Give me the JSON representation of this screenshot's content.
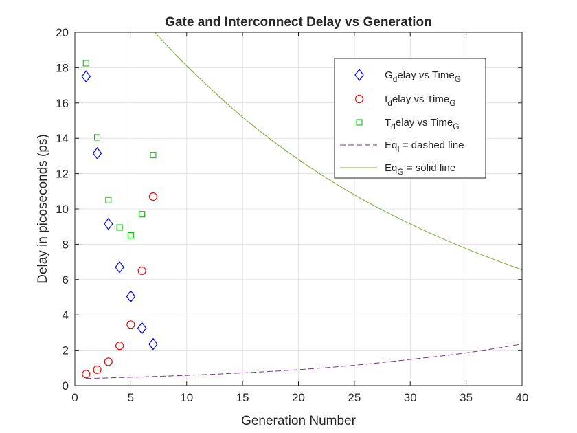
{
  "chart_data": {
    "type": "scatter",
    "title": "Gate and Interconnect Delay vs Generation",
    "xlabel": "Generation Number",
    "ylabel": "Delay in picoseconds (ps)",
    "xlim": [
      0,
      40
    ],
    "ylim": [
      0,
      20
    ],
    "xticks": [
      "0",
      "5",
      "10",
      "15",
      "20",
      "25",
      "30",
      "35",
      "40"
    ],
    "yticks": [
      "0",
      "2",
      "4",
      "6",
      "8",
      "10",
      "12",
      "14",
      "16",
      "18",
      "20"
    ],
    "grid": true,
    "legend_position": "top-right",
    "series": [
      {
        "name": "G_delay vs Time_G",
        "marker": "diamond",
        "color": "#0000ff",
        "x": [
          1,
          2,
          3,
          4,
          5,
          6,
          7
        ],
        "y": [
          17.5,
          13.15,
          9.15,
          6.7,
          5.05,
          3.25,
          2.35
        ]
      },
      {
        "name": "I_delay vs Time_G",
        "marker": "circle",
        "color": "#ff0000",
        "x": [
          1,
          2,
          3,
          4,
          5,
          6,
          7
        ],
        "y": [
          0.65,
          0.9,
          1.35,
          2.25,
          3.45,
          6.5,
          10.7
        ]
      },
      {
        "name": "T_delay vs Time_G",
        "marker": "square",
        "color": "#00cc00",
        "x": [
          1,
          2,
          3,
          4,
          5,
          6,
          7
        ],
        "y": [
          18.25,
          14.05,
          10.5,
          8.95,
          8.5,
          9.7,
          13.05
        ]
      },
      {
        "name": "Eq_I = dashed line",
        "marker": "none",
        "line": "dashed",
        "color": "#7e2f8e",
        "x": [
          1,
          5,
          10,
          15,
          20,
          25,
          30,
          35,
          40
        ],
        "y": [
          0.4,
          0.47,
          0.58,
          0.72,
          0.9,
          1.15,
          1.48,
          1.85,
          2.35
        ]
      },
      {
        "name": "Eq_G = solid line",
        "marker": "none",
        "line": "solid",
        "color": "#77ac30",
        "x": [
          7,
          10,
          15,
          20,
          25,
          30,
          35,
          40
        ],
        "y": [
          20.1,
          18.1,
          15.2,
          12.8,
          10.8,
          9.15,
          7.75,
          6.55
        ]
      }
    ]
  },
  "legend": [
    {
      "base": "G",
      "sub1": "d",
      "mid": "elay vs Time",
      "sub2": "G"
    },
    {
      "base": "I",
      "sub1": "d",
      "mid": "elay vs Time",
      "sub2": "G"
    },
    {
      "base": "T",
      "sub1": "d",
      "mid": "elay vs Time",
      "sub2": "G"
    },
    {
      "base": "Eq",
      "sub1": "I",
      "mid": " = dashed line",
      "sub2": ""
    },
    {
      "base": "Eq",
      "sub1": "G",
      "mid": " = solid line",
      "sub2": ""
    }
  ]
}
